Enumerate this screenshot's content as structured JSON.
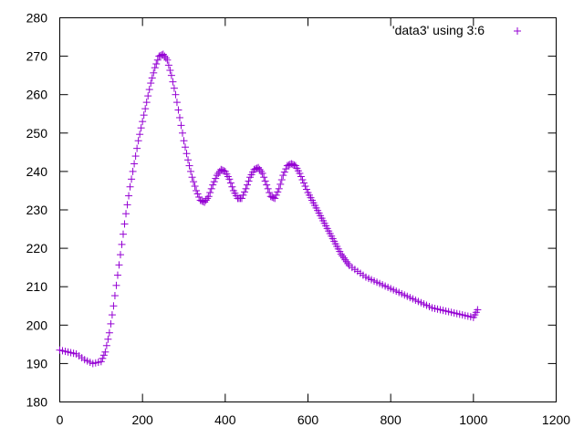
{
  "chart_data": {
    "type": "scatter",
    "title": "",
    "xlabel": "",
    "ylabel": "",
    "xlim": [
      0,
      1200
    ],
    "ylim": [
      180,
      280
    ],
    "xticks": [
      0,
      200,
      400,
      600,
      800,
      1000,
      1200
    ],
    "yticks": [
      180,
      190,
      200,
      210,
      220,
      230,
      240,
      250,
      260,
      270,
      280
    ],
    "xtick_labels": [
      "0",
      "200",
      "400",
      "600",
      "800",
      "1000",
      "1200"
    ],
    "ytick_labels": [
      "180",
      "190",
      "200",
      "210",
      "220",
      "230",
      "240",
      "250",
      "260",
      "270",
      "280"
    ],
    "grid": false,
    "legend_position": "top-right",
    "marker": "+",
    "color": "#9400d3",
    "series": [
      {
        "name": "'data3' using 3:6",
        "x": [
          0,
          20,
          40,
          60,
          80,
          100,
          110,
          120,
          130,
          140,
          150,
          160,
          170,
          180,
          190,
          200,
          210,
          220,
          230,
          240,
          250,
          260,
          270,
          280,
          290,
          300,
          310,
          320,
          330,
          340,
          350,
          360,
          370,
          380,
          390,
          400,
          410,
          420,
          430,
          440,
          450,
          460,
          470,
          480,
          490,
          500,
          510,
          520,
          530,
          540,
          550,
          560,
          570,
          580,
          590,
          600,
          610,
          620,
          630,
          640,
          650,
          660,
          670,
          680,
          690,
          700,
          720,
          740,
          760,
          780,
          800,
          820,
          840,
          860,
          880,
          900,
          920,
          940,
          960,
          980,
          1000,
          1010
        ],
        "y": [
          193.5,
          193.0,
          192.5,
          191.0,
          190.0,
          190.5,
          193.0,
          198.0,
          205.0,
          213.0,
          221.0,
          229.0,
          236.0,
          242.0,
          248.0,
          253.0,
          258.0,
          263.0,
          267.0,
          270.0,
          270.5,
          269.0,
          265.0,
          260.0,
          254.0,
          248.0,
          243.0,
          238.5,
          235.0,
          232.5,
          232.0,
          233.5,
          236.5,
          239.0,
          240.5,
          240.0,
          238.0,
          235.0,
          233.0,
          233.0,
          235.5,
          238.5,
          240.5,
          241.0,
          239.5,
          236.5,
          233.5,
          233.0,
          235.5,
          239.0,
          241.5,
          242.0,
          241.5,
          239.5,
          237.0,
          234.5,
          232.5,
          230.5,
          228.5,
          226.5,
          224.5,
          222.5,
          220.5,
          218.5,
          217.0,
          215.5,
          214.0,
          212.5,
          211.5,
          210.5,
          209.5,
          208.5,
          207.5,
          206.5,
          205.5,
          204.5,
          204.0,
          203.5,
          203.0,
          202.5,
          202.0,
          204.0
        ]
      }
    ]
  }
}
